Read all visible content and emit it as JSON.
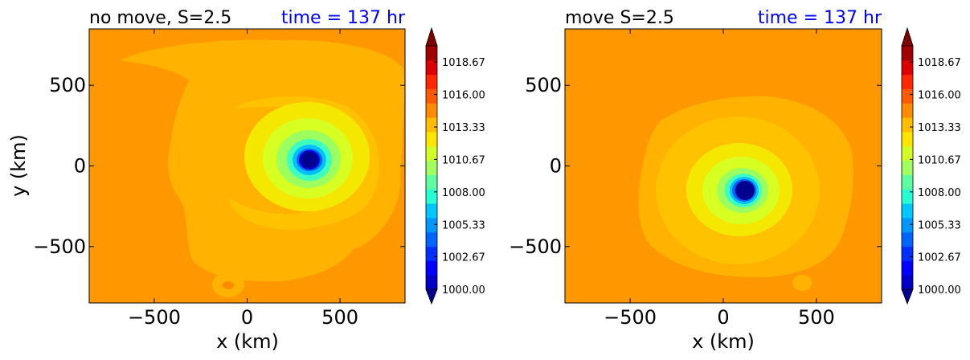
{
  "figure": {
    "colorbar_ticks": [
      "1000.00",
      "1002.67",
      "1005.33",
      "1008.00",
      "1010.67",
      "1013.33",
      "1016.00",
      "1018.67"
    ],
    "colorbar_levels": [
      1000,
      1001.33,
      1002.67,
      1004,
      1005.33,
      1006.67,
      1008,
      1009.33,
      1010.67,
      1012,
      1013.33,
      1014.67,
      1016,
      1017.33,
      1018.67,
      1020
    ],
    "colors": [
      "#00008f",
      "#0000c8",
      "#0000ff",
      "#0030ff",
      "#0064ff",
      "#0098ff",
      "#00c8ff",
      "#26ffd1",
      "#5effa0",
      "#a0ff5e",
      "#d1ff26",
      "#ffe600",
      "#ffbe00",
      "#ff8c00",
      "#ff5a00",
      "#ff2800",
      "#dc0000",
      "#a00000",
      "#800000"
    ],
    "xlabel": "x (km)",
    "ylabel": "y (km)"
  },
  "chart_data": [
    {
      "type": "heatmap",
      "title": "no move, S=2.5",
      "time_label": "time = 137 hr",
      "xlabel": "x (km)",
      "ylabel": "y (km)",
      "xlim": [
        -850,
        850
      ],
      "ylim": [
        -850,
        850
      ],
      "xticks": [
        -500,
        0,
        500
      ],
      "yticks": [
        -500,
        0,
        500
      ],
      "xtick_labels": [
        "−500",
        "0",
        "500"
      ],
      "ytick_labels": [
        "−500",
        "0",
        "500"
      ],
      "colorbar": {
        "min": 1000.0,
        "max": 1020.0,
        "extend": "both",
        "ticks": [
          1000.0,
          1002.67,
          1005.33,
          1008.0,
          1010.67,
          1013.33,
          1016.0,
          1018.67
        ]
      },
      "background_pressure": 1016.7,
      "vortex_center_km": [
        330,
        40
      ],
      "min_pressure": 1000.0,
      "features": [
        {
          "kind": "outer_envelope",
          "pressure": 1016.0,
          "extent_km": [
            -500,
            850,
            -700,
            650
          ]
        },
        {
          "kind": "spiral_band",
          "pressure": 1014.5
        },
        {
          "kind": "inner_core",
          "pressure": 1012.5,
          "radius_km": 130
        },
        {
          "kind": "small_eddy",
          "center_km": [
            -120,
            -740
          ],
          "pressure": 1016.0
        }
      ]
    },
    {
      "type": "heatmap",
      "title": "move S=2.5",
      "time_label": "time = 137 hr",
      "xlabel": "x (km)",
      "ylabel": "",
      "xlim": [
        -850,
        850
      ],
      "ylim": [
        -850,
        850
      ],
      "xticks": [
        -500,
        0,
        500
      ],
      "yticks": [
        -500,
        0,
        500
      ],
      "xtick_labels": [
        "−500",
        "0",
        "500"
      ],
      "ytick_labels": [
        "−500",
        "0",
        "500"
      ],
      "colorbar": {
        "min": 1000.0,
        "max": 1020.0,
        "extend": "both",
        "ticks": [
          1000.0,
          1002.67,
          1005.33,
          1008.0,
          1010.67,
          1013.33,
          1016.0,
          1018.67
        ]
      },
      "background_pressure": 1016.7,
      "vortex_center_km": [
        120,
        -150
      ],
      "min_pressure": 1000.0,
      "features": [
        {
          "kind": "outer_envelope",
          "pressure": 1016.0,
          "extent_km": [
            -450,
            620,
            -620,
            500
          ]
        },
        {
          "kind": "mid_ring",
          "pressure": 1013.0,
          "radius_km": 300
        },
        {
          "kind": "inner_core",
          "pressure": 1010.5,
          "radius_km": 140
        }
      ]
    }
  ]
}
